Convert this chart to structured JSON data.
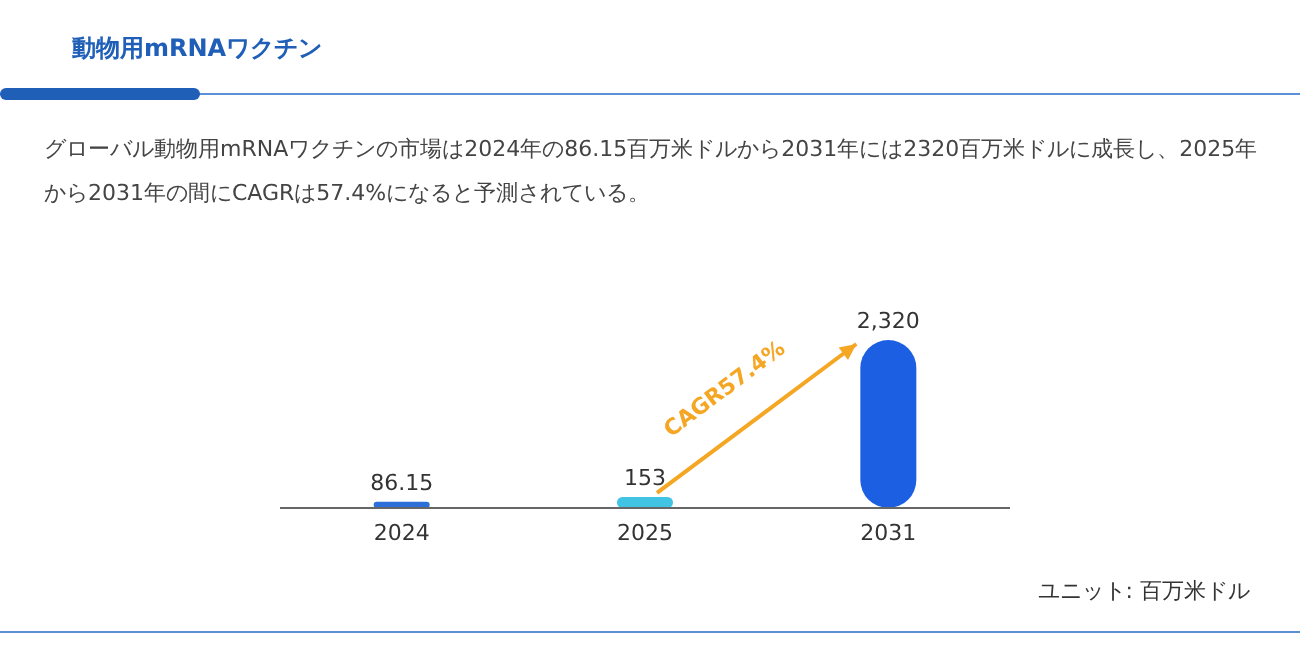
{
  "chart_data": {
    "type": "bar",
    "title": "動物用mRNAワクチン",
    "subtitle": "グローバル動物用mRNAワクチンの市場は2024年の86.15百万米ドルから2031年には2320百万米ドルに成長し、2025年から2031年の間にCAGRは57.4%になると予測されている。",
    "categories": [
      "2024",
      "2025",
      "2031"
    ],
    "values": [
      86.15,
      153,
      2320
    ],
    "value_labels": [
      "86.15",
      "153",
      "2,320"
    ],
    "colors": [
      "#2d6fd9",
      "#41c3e3",
      "#1c5fe2"
    ],
    "annotations": [
      "CAGR57.4%",
      "ユニット: 百万米ドル"
    ]
  }
}
